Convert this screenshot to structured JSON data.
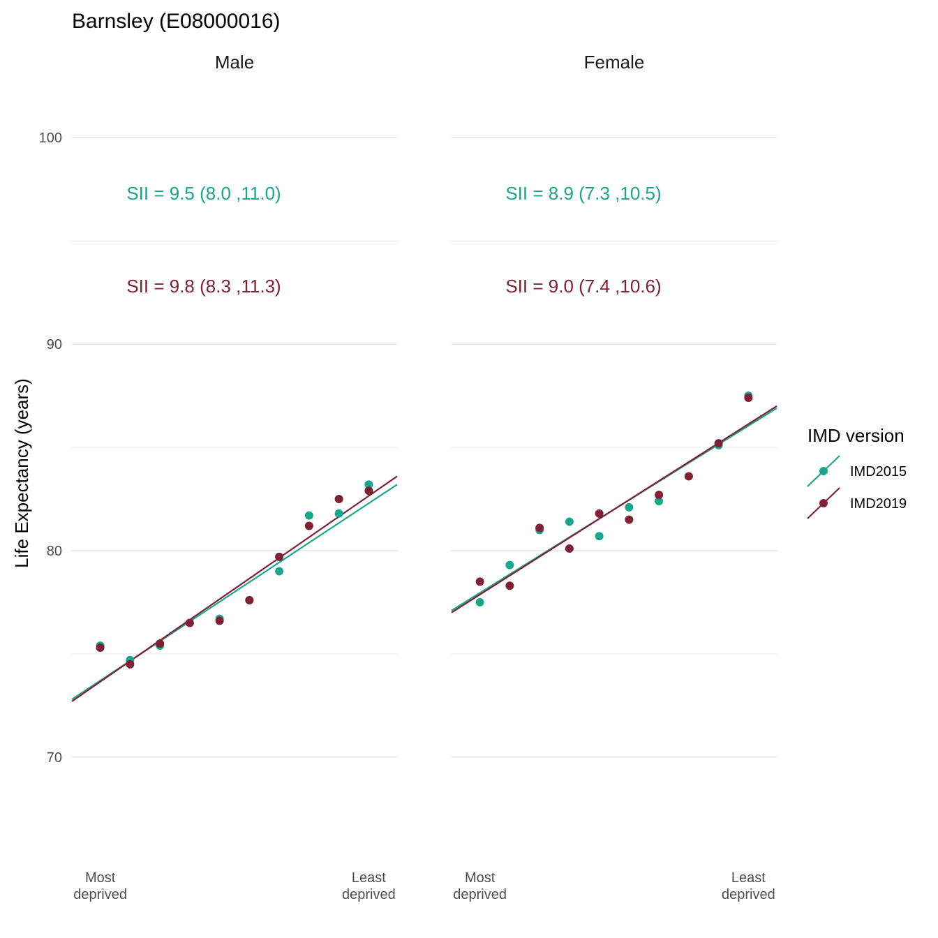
{
  "chart_data": {
    "type": "scatter",
    "title": "Barnsley (E08000016)",
    "ylabel": "Life Expectancy (years)",
    "xlabel": "",
    "ylim": [
      65.5,
      102
    ],
    "yticks": [
      70,
      80,
      90,
      100
    ],
    "xtick_labels": [
      {
        "line1": "Most",
        "line2": "deprived"
      },
      {
        "line1": "Least",
        "line2": "deprived"
      }
    ],
    "legend": {
      "title": "IMD version",
      "placement": "right",
      "entries": [
        "IMD2015",
        "IMD2019"
      ]
    },
    "colors": {
      "IMD2015": "#1aa68c",
      "IMD2019": "#7f2035"
    },
    "facets": [
      {
        "name": "Male",
        "annotations": [
          {
            "series": "IMD2015",
            "text": "SII = 9.5 (8.0 ,11.0)",
            "y": 97.3
          },
          {
            "series": "IMD2019",
            "text": "SII = 9.8 (8.3 ,11.3)",
            "y": 92.8
          }
        ],
        "series": [
          {
            "name": "IMD2015",
            "x": [
              1,
              2,
              3,
              4,
              5,
              6,
              7,
              8,
              9,
              10
            ],
            "y": [
              75.4,
              74.7,
              75.4,
              76.5,
              76.7,
              77.6,
              79.0,
              81.7,
              81.8,
              83.2
            ],
            "fit": [
              72.8,
              83.2
            ]
          },
          {
            "name": "IMD2019",
            "x": [
              1,
              2,
              3,
              4,
              5,
              6,
              7,
              8,
              9,
              10
            ],
            "y": [
              75.3,
              74.5,
              75.5,
              76.5,
              76.6,
              77.6,
              79.7,
              81.2,
              82.5,
              82.9
            ],
            "fit": [
              72.7,
              83.6
            ]
          }
        ]
      },
      {
        "name": "Female",
        "annotations": [
          {
            "series": "IMD2015",
            "text": "SII = 8.9 (7.3 ,10.5)",
            "y": 97.3
          },
          {
            "series": "IMD2019",
            "text": "SII = 9.0 (7.4 ,10.6)",
            "y": 92.8
          }
        ],
        "series": [
          {
            "name": "IMD2015",
            "x": [
              1,
              2,
              3,
              4,
              5,
              6,
              7,
              8,
              9,
              10
            ],
            "y": [
              77.5,
              79.3,
              81.0,
              81.4,
              80.7,
              82.1,
              82.4,
              83.6,
              85.1,
              87.5
            ],
            "fit": [
              77.1,
              86.9
            ]
          },
          {
            "name": "IMD2019",
            "x": [
              1,
              2,
              3,
              4,
              5,
              6,
              7,
              8,
              9,
              10
            ],
            "y": [
              78.5,
              78.3,
              81.1,
              80.1,
              81.8,
              81.5,
              82.7,
              83.6,
              85.2,
              87.4
            ],
            "fit": [
              77.0,
              87.0
            ]
          }
        ]
      }
    ]
  }
}
